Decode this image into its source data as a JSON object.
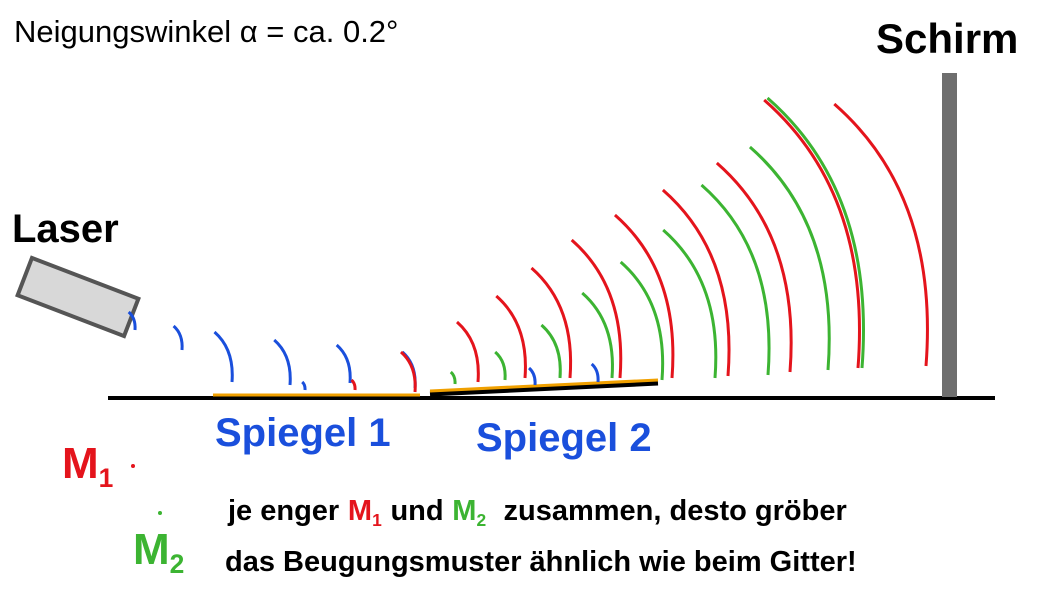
{
  "title": "Neigungswinkel α = ca. 0.2°",
  "labels": {
    "screen": "Schirm",
    "laser": "Laser",
    "mirror_1": "Spiegel 1",
    "mirror_2": "Spiegel 2"
  },
  "points": [
    {
      "symbol": "M",
      "index": "1"
    },
    {
      "symbol": "M",
      "index": "2"
    }
  ],
  "note": {
    "line_1": {
      "before": "je enger",
      "point_1": {
        "symbol": "M",
        "index": "1"
      },
      "between": "und",
      "point_2": {
        "symbol": "M",
        "index": "2"
      },
      "after": "zusammen, desto gröber"
    },
    "line_2": "das Beugungsmuster ähnlich wie beim Gitter!"
  }
}
